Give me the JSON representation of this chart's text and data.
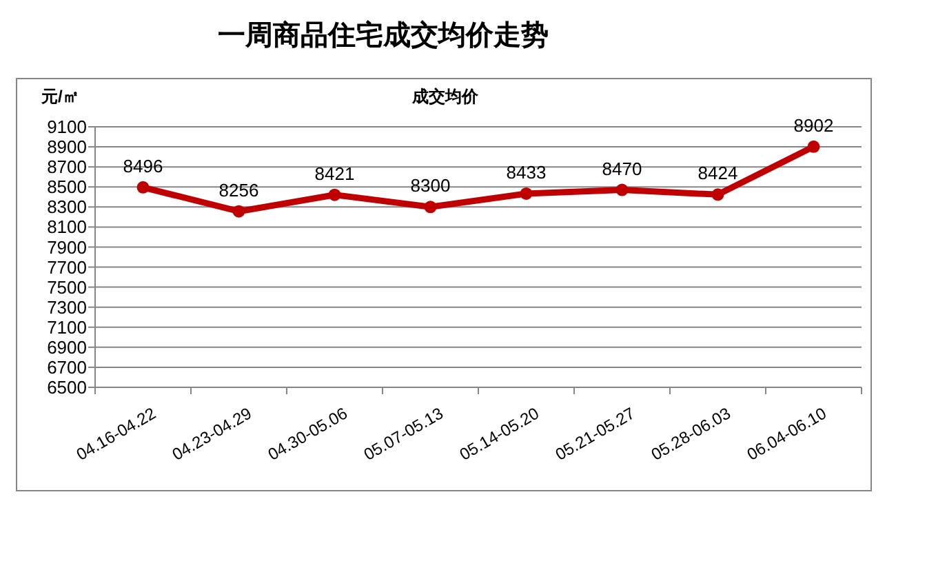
{
  "chart_data": {
    "type": "line",
    "title": "一周商品住宅成交均价走势",
    "subtitle": "成交均价",
    "ylabel": "元/㎡",
    "categories": [
      "04.16-04.22",
      "04.23-04.29",
      "04.30-05.06",
      "05.07-05.13",
      "05.14-05.20",
      "05.21-05.27",
      "05.28-06.03",
      "06.04-06.10"
    ],
    "series": [
      {
        "color": "#c00000",
        "values": [
          8496,
          8256,
          8421,
          8300,
          8433,
          8470,
          8424,
          8902
        ]
      }
    ],
    "ylim": [
      6500,
      9100
    ],
    "yticks": [
      6500,
      6700,
      6900,
      7100,
      7300,
      7500,
      7700,
      7900,
      8100,
      8300,
      8500,
      8700,
      8900,
      9100
    ],
    "grid": "y",
    "marker": "circle",
    "data_labels": true
  }
}
